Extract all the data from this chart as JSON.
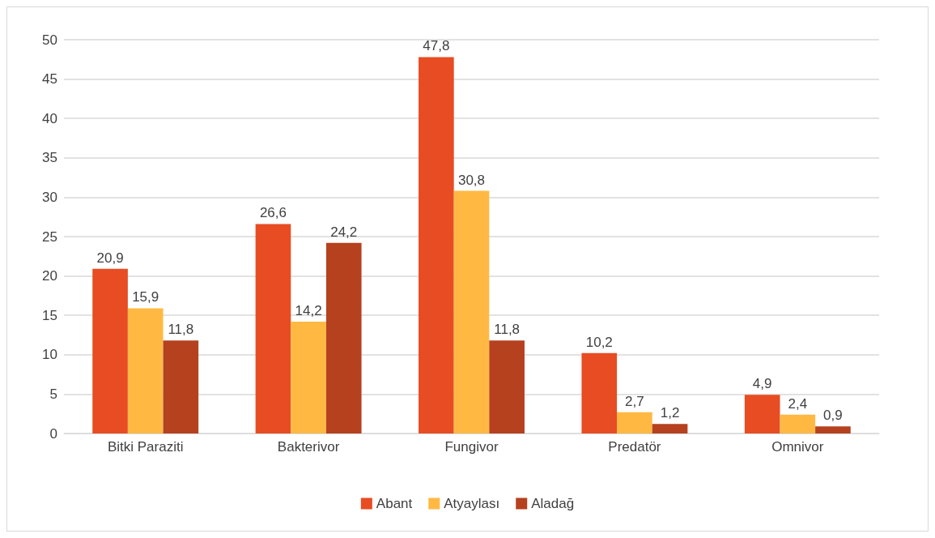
{
  "chart_data": {
    "type": "bar",
    "categories": [
      "Bitki Paraziti",
      "Bakterivor",
      "Fungivor",
      "Predatör",
      "Omnivor"
    ],
    "series": [
      {
        "name": "Abant",
        "color": "#e84c22",
        "values": [
          20.9,
          26.6,
          47.8,
          10.2,
          4.9
        ],
        "value_labels": [
          "20,9",
          "26,6",
          "47,8",
          "10,2",
          "4,9"
        ]
      },
      {
        "name": "Atyaylası",
        "color": "#ffb943",
        "values": [
          15.9,
          14.2,
          30.8,
          2.7,
          2.4
        ],
        "value_labels": [
          "15,9",
          "14,2",
          "30,8",
          "2,7",
          "2,4"
        ]
      },
      {
        "name": "Aladağ",
        "color": "#b5411f",
        "values": [
          11.8,
          24.2,
          11.8,
          1.2,
          0.9
        ],
        "value_labels": [
          "11,8",
          "24,2",
          "11,8",
          "1,2",
          "0,9"
        ]
      }
    ],
    "ylim": [
      0,
      50
    ],
    "yticks": [
      0,
      5,
      10,
      15,
      20,
      25,
      30,
      35,
      40,
      45,
      50
    ],
    "grid": "y",
    "legend": "bottom"
  }
}
